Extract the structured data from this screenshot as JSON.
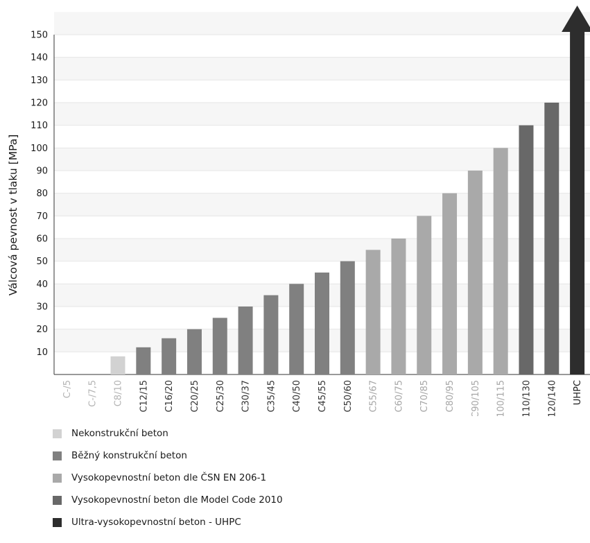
{
  "chart_data": {
    "type": "bar",
    "ylabel": "Válcová pevnost v tlaku [MPa]",
    "ylim": [
      0,
      150
    ],
    "yticks": [
      10,
      20,
      30,
      40,
      50,
      60,
      70,
      80,
      90,
      100,
      110,
      120,
      130,
      140,
      150
    ],
    "grid": true,
    "legend_placement": "bottom-left",
    "categories": [
      "C-/5",
      "C-/7,5",
      "C8/10",
      "C12/15",
      "C16/20",
      "C20/25",
      "C25/30",
      "C30/37",
      "C35/45",
      "C40/50",
      "C45/55",
      "C50/60",
      "C55/67",
      "C60/75",
      "C70/85",
      "C80/95",
      "C90/105",
      "C100/115",
      "C110/130",
      "C120/140",
      "UHPC"
    ],
    "values": [
      null,
      null,
      8,
      12,
      16,
      20,
      25,
      30,
      35,
      40,
      45,
      50,
      55,
      60,
      70,
      80,
      90,
      100,
      110,
      120,
      null
    ],
    "bar_group": [
      0,
      0,
      0,
      1,
      1,
      1,
      1,
      1,
      1,
      1,
      1,
      1,
      2,
      2,
      2,
      2,
      2,
      2,
      3,
      3,
      4
    ],
    "uhpc_arrow": {
      "category": "UHPC",
      "group": 4,
      "extends_beyond_axis": true
    },
    "groups": [
      {
        "name": "Nekonstrukční beton",
        "color": "#d2d2d2",
        "tick_color": "#b3b3b3"
      },
      {
        "name": "Běžný konstrukční beton",
        "color": "#808080",
        "tick_color": "#333333"
      },
      {
        "name": "Vysokopevnostní beton dle ČSN EN 206-1",
        "color": "#a9a9a9",
        "tick_color": "#a6a6a6"
      },
      {
        "name": "Vysokopevnostní beton dle Model Code 2010",
        "color": "#686868",
        "tick_color": "#333333"
      },
      {
        "name": "Ultra-vysokopevnostní beton - UHPC",
        "color": "#2d2d2d",
        "tick_color": "#1a1a1a"
      }
    ],
    "grid_color": "#e6e6e6",
    "band_color": "#f6f6f6"
  }
}
